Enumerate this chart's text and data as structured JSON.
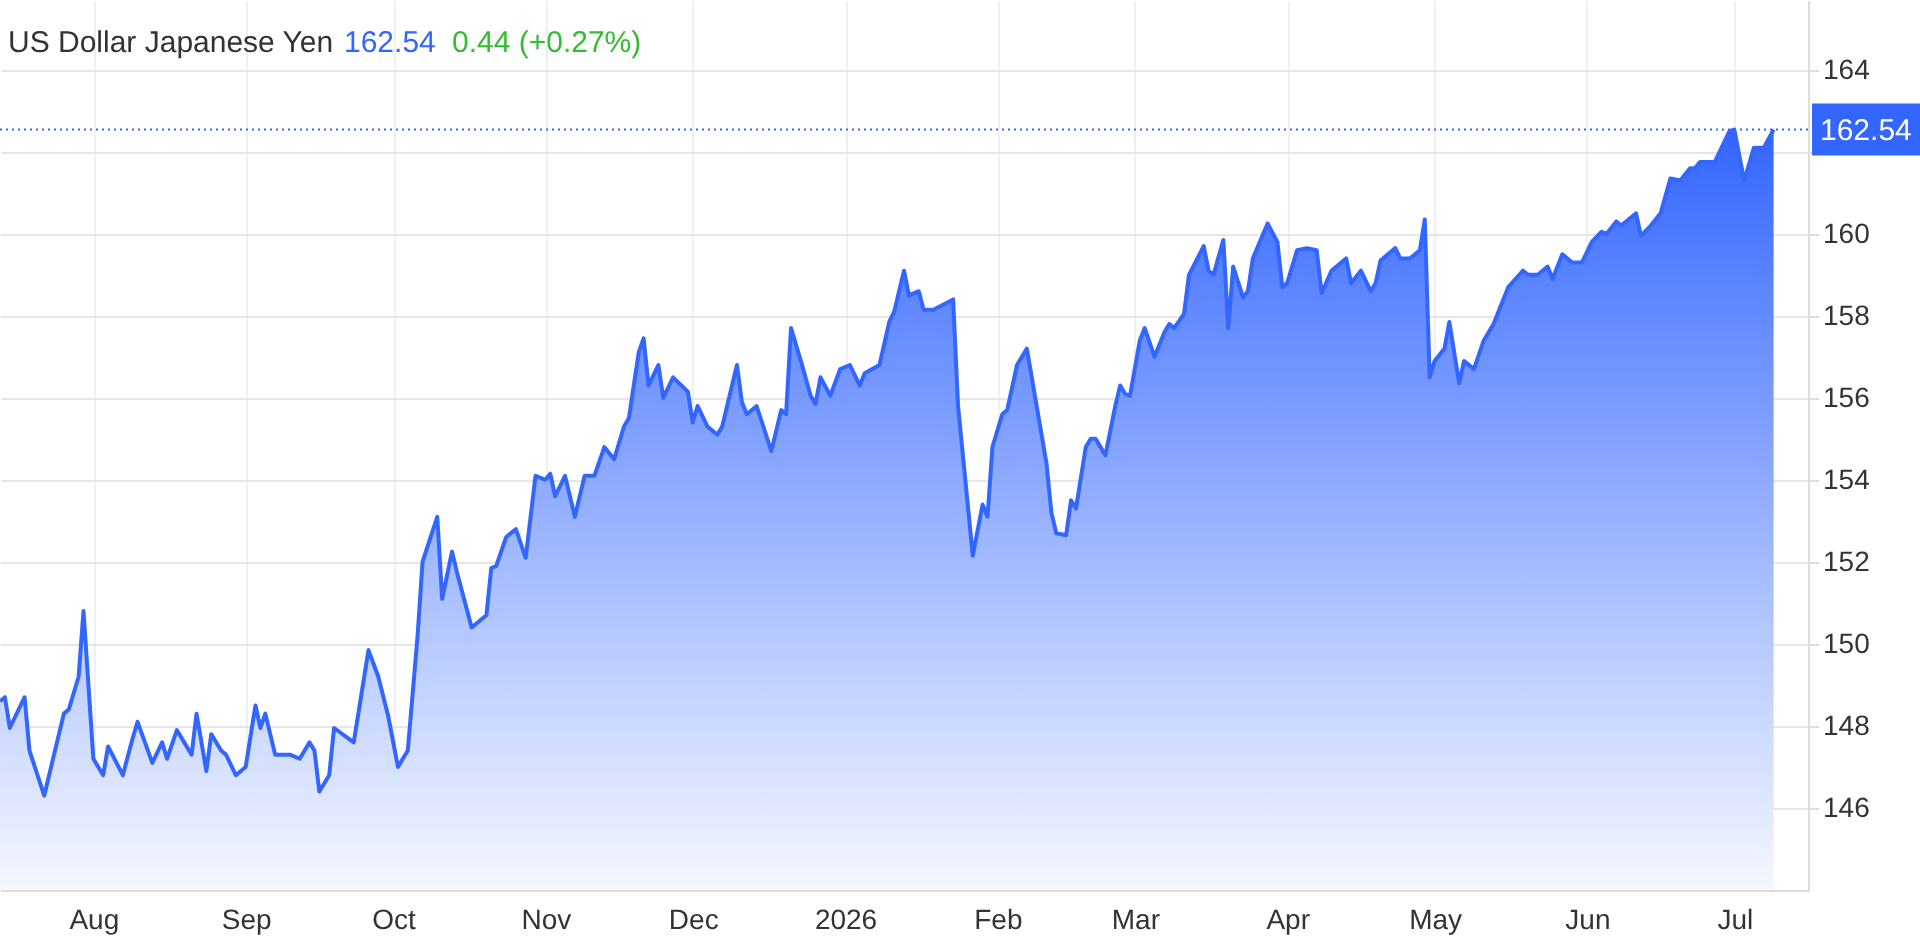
{
  "chart_data": {
    "type": "area",
    "title": "US Dollar Japanese Yen",
    "annotations": [
      "162.54",
      "0.44 (+0.27%)"
    ],
    "x": [
      "2025-07-13",
      "2025-07-14",
      "2025-07-15",
      "2025-07-18",
      "2025-07-19",
      "2025-07-22",
      "2025-07-26",
      "2025-07-27",
      "2025-07-29",
      "2025-07-30",
      "2025-08-01",
      "2025-08-03",
      "2025-08-04",
      "2025-08-07",
      "2025-08-09",
      "2025-08-10",
      "2025-08-13",
      "2025-08-15",
      "2025-08-16",
      "2025-08-18",
      "2025-08-21",
      "2025-08-22",
      "2025-08-24",
      "2025-08-25",
      "2025-08-27",
      "2025-08-28",
      "2025-08-30",
      "2025-09-01",
      "2025-09-03",
      "2025-09-04",
      "2025-09-05",
      "2025-09-07",
      "2025-09-10",
      "2025-09-12",
      "2025-09-14",
      "2025-09-15",
      "2025-09-16",
      "2025-09-18",
      "2025-09-19",
      "2025-09-23",
      "2025-09-26",
      "2025-09-28",
      "2025-09-30",
      "2025-10-02",
      "2025-10-04",
      "2025-10-06",
      "2025-10-07",
      "2025-10-10",
      "2025-10-11",
      "2025-10-13",
      "2025-10-14",
      "2025-10-17",
      "2025-10-20",
      "2025-10-21",
      "2025-10-22",
      "2025-10-24",
      "2025-10-26",
      "2025-10-28",
      "2025-10-30",
      "2025-11-01",
      "2025-11-02",
      "2025-11-03",
      "2025-11-05",
      "2025-11-07",
      "2025-11-09",
      "2025-11-11",
      "2025-11-13",
      "2025-11-15",
      "2025-11-17",
      "2025-11-18",
      "2025-11-20",
      "2025-11-21",
      "2025-11-22",
      "2025-11-24",
      "2025-11-25",
      "2025-11-27",
      "2025-11-30",
      "2025-12-01",
      "2025-12-02",
      "2025-12-04",
      "2025-12-06",
      "2025-12-07",
      "2025-12-10",
      "2025-12-11",
      "2025-12-12",
      "2025-12-14",
      "2025-12-17",
      "2025-12-19",
      "2025-12-20",
      "2025-12-21",
      "2025-12-23",
      "2025-12-25",
      "2025-12-26",
      "2025-12-27",
      "2025-12-29",
      "2025-12-31",
      "2026-01-02",
      "2026-01-04",
      "2026-01-05",
      "2026-01-08",
      "2026-01-10",
      "2026-01-11",
      "2026-01-13",
      "2026-01-14",
      "2026-01-16",
      "2026-01-17",
      "2026-01-19",
      "2026-01-23",
      "2026-01-24",
      "2026-01-27",
      "2026-01-29",
      "2026-01-30",
      "2026-01-31",
      "2026-02-02",
      "2026-02-03",
      "2026-02-05",
      "2026-02-07",
      "2026-02-11",
      "2026-02-12",
      "2026-02-13",
      "2026-02-15",
      "2026-02-16",
      "2026-02-17",
      "2026-02-19",
      "2026-02-20",
      "2026-02-21",
      "2026-02-23",
      "2026-02-25",
      "2026-02-26",
      "2026-02-27",
      "2026-02-28",
      "2026-03-02",
      "2026-03-03",
      "2026-03-05",
      "2026-03-07",
      "2026-03-08",
      "2026-03-09",
      "2026-03-11",
      "2026-03-12",
      "2026-03-15",
      "2026-03-16",
      "2026-03-17",
      "2026-03-19",
      "2026-03-20",
      "2026-03-21",
      "2026-03-23",
      "2026-03-24",
      "2026-03-25",
      "2026-03-28",
      "2026-03-30",
      "2026-03-31",
      "2026-04-01",
      "2026-04-03",
      "2026-04-05",
      "2026-04-07",
      "2026-04-08",
      "2026-04-10",
      "2026-04-13",
      "2026-04-14",
      "2026-04-16",
      "2026-04-18",
      "2026-04-19",
      "2026-04-20",
      "2026-04-23",
      "2026-04-24",
      "2026-04-26",
      "2026-04-28",
      "2026-04-29",
      "2026-04-30",
      "2026-05-01",
      "2026-05-03",
      "2026-05-04",
      "2026-05-06",
      "2026-05-07",
      "2026-05-09",
      "2026-05-11",
      "2026-05-13",
      "2026-05-16",
      "2026-05-19",
      "2026-05-20",
      "2026-05-22",
      "2026-05-24",
      "2026-05-25",
      "2026-05-27",
      "2026-05-29",
      "2026-05-31",
      "2026-06-02",
      "2026-06-04",
      "2026-06-05",
      "2026-06-07",
      "2026-06-08",
      "2026-06-11",
      "2026-06-12",
      "2026-06-14",
      "2026-06-16",
      "2026-06-18",
      "2026-06-20",
      "2026-06-22",
      "2026-06-23",
      "2026-06-24",
      "2026-06-27",
      "2026-06-30",
      "2026-07-01",
      "2026-07-03",
      "2026-07-05",
      "2026-07-07",
      "2026-07-09"
    ],
    "series": [
      {
        "color": "#3366ff",
        "values": [
          148.6,
          148.7,
          147.95,
          148.7,
          147.4,
          146.3,
          148.3,
          148.4,
          149.2,
          150.8,
          147.2,
          146.8,
          147.5,
          146.8,
          147.7,
          148.1,
          147.1,
          147.6,
          147.2,
          147.9,
          147.3,
          148.3,
          146.9,
          147.8,
          147.4,
          147.3,
          146.8,
          147.0,
          148.5,
          147.95,
          148.3,
          147.3,
          147.3,
          147.2,
          147.6,
          147.4,
          146.4,
          146.8,
          147.95,
          147.6,
          149.85,
          149.2,
          148.25,
          147.0,
          147.4,
          150.2,
          152.0,
          153.1,
          151.1,
          152.25,
          151.75,
          150.4,
          150.7,
          151.85,
          151.9,
          152.6,
          152.8,
          152.1,
          154.1,
          154.0,
          154.15,
          153.6,
          154.1,
          153.1,
          154.1,
          154.1,
          154.8,
          154.5,
          155.3,
          155.5,
          157.1,
          157.45,
          156.3,
          156.8,
          156.0,
          156.5,
          156.15,
          155.4,
          155.8,
          155.3,
          155.1,
          155.3,
          156.8,
          155.9,
          155.6,
          155.8,
          154.7,
          155.7,
          155.6,
          157.7,
          156.9,
          156.05,
          155.85,
          156.5,
          156.05,
          156.7,
          156.8,
          156.3,
          156.6,
          156.8,
          157.85,
          158.1,
          159.1,
          158.5,
          158.6,
          158.15,
          158.15,
          158.4,
          155.8,
          152.15,
          153.4,
          153.1,
          154.8,
          155.6,
          155.7,
          156.8,
          157.2,
          154.4,
          153.2,
          152.7,
          152.65,
          153.5,
          153.3,
          154.8,
          155.0,
          155.0,
          154.6,
          155.8,
          156.3,
          156.1,
          156.05,
          157.4,
          157.7,
          157.0,
          157.6,
          157.8,
          157.7,
          158.05,
          159.0,
          159.7,
          159.1,
          159.0,
          159.85,
          157.7,
          159.2,
          158.45,
          158.6,
          159.4,
          160.25,
          159.8,
          158.7,
          158.8,
          159.6,
          159.65,
          159.6,
          158.55,
          159.1,
          159.4,
          158.8,
          159.1,
          158.6,
          158.8,
          159.35,
          159.65,
          159.4,
          159.4,
          159.6,
          160.35,
          156.5,
          156.9,
          157.2,
          157.85,
          156.35,
          156.9,
          156.7,
          157.4,
          157.8,
          158.7,
          159.1,
          159.0,
          159.0,
          159.2,
          158.9,
          159.5,
          159.3,
          159.3,
          159.8,
          160.05,
          160.0,
          160.3,
          160.2,
          160.5,
          159.95,
          160.2,
          160.5,
          161.35,
          161.3,
          161.6,
          161.6,
          161.75,
          161.75,
          162.5,
          162.54,
          161.3,
          162.1,
          162.1,
          162.54
        ]
      }
    ],
    "xlim": [
      "2025-07-13",
      "2026-07-16"
    ],
    "ylim": [
      144,
      165.7
    ],
    "xticks": [
      {
        "value": "2025-08-01",
        "label": "Aug"
      },
      {
        "value": "2025-09-01",
        "label": "Sep"
      },
      {
        "value": "2025-10-01",
        "label": "Oct"
      },
      {
        "value": "2025-11-01",
        "label": "Nov"
      },
      {
        "value": "2025-12-01",
        "label": "Dec"
      },
      {
        "value": "2026-01-01",
        "label": "2026"
      },
      {
        "value": "2026-02-01",
        "label": "Feb"
      },
      {
        "value": "2026-03-01",
        "label": "Mar"
      },
      {
        "value": "2026-04-01",
        "label": "Apr"
      },
      {
        "value": "2026-05-01",
        "label": "May"
      },
      {
        "value": "2026-06-01",
        "label": "Jun"
      },
      {
        "value": "2026-07-01",
        "label": "Jul"
      }
    ],
    "yticks": [
      146,
      148,
      150,
      152,
      154,
      156,
      158,
      160,
      {
        "value": 162,
        "label": null
      },
      164
    ],
    "grid": true,
    "ref_lines": [
      {
        "axis": "y",
        "value": 162.54,
        "label": "162.54",
        "color": "#3366ff",
        "line_style": "dotted"
      }
    ]
  }
}
